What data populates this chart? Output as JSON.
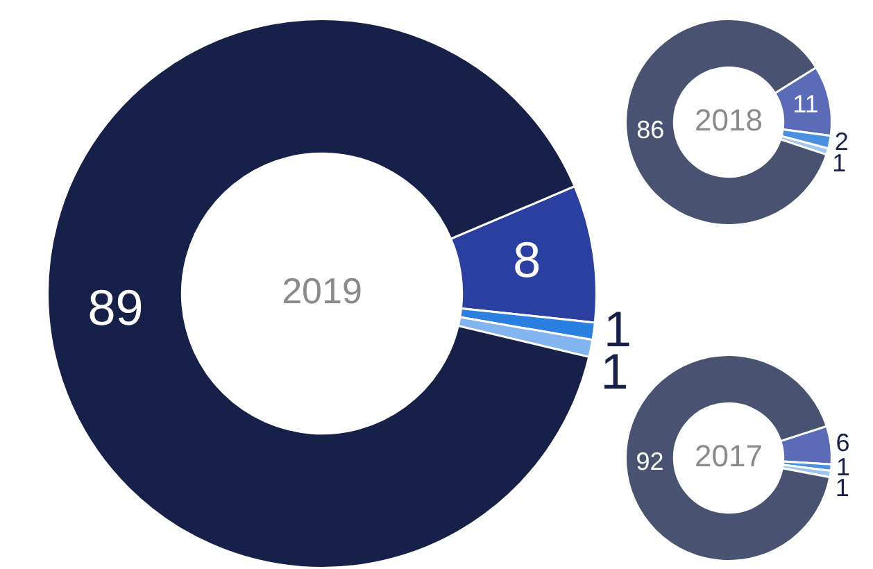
{
  "chart_data": [
    {
      "type": "donut",
      "title": "2019",
      "categories": [
        null,
        null,
        null,
        null
      ],
      "values": [
        8,
        1,
        1,
        89
      ],
      "colors": [
        "#2b3fa0",
        "#2a7fe0",
        "#82b4f0",
        "#172048"
      ],
      "data_labels": true
    },
    {
      "type": "donut",
      "title": "2018",
      "categories": [
        null,
        null,
        null,
        null
      ],
      "values": [
        11,
        2,
        1,
        86
      ],
      "colors": [
        "#5b6bb8",
        "#4a90e0",
        "#a0c4f0",
        "#4a5272"
      ],
      "data_labels": true
    },
    {
      "type": "donut",
      "title": "2017",
      "categories": [
        null,
        null,
        null,
        null
      ],
      "values": [
        6,
        1,
        1,
        92
      ],
      "colors": [
        "#5b6bb8",
        "#4a90e0",
        "#a0c4f0",
        "#4a5272"
      ],
      "data_labels": true
    }
  ]
}
